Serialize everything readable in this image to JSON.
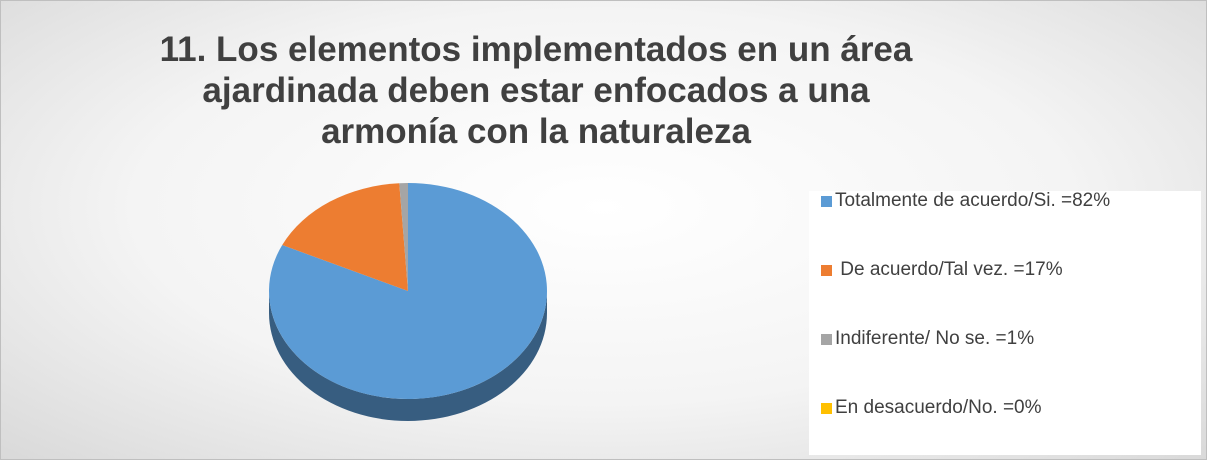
{
  "chart_data": {
    "type": "pie",
    "title": "11. Los elementos implementados en un área ajardinada deben estar enfocados a una armonía con la naturaleza",
    "categories": [
      "Totalmente de acuerdo/Si. =82%",
      " De acuerdo/Tal vez. =17%",
      "Indiferente/ No se. =1%",
      "En desacuerdo/No. =0%"
    ],
    "values": [
      82,
      17,
      1,
      0
    ],
    "colors": [
      "#5b9bd5",
      "#ed7d31",
      "#a5a5a5",
      "#ffc000"
    ],
    "legend": "right"
  }
}
